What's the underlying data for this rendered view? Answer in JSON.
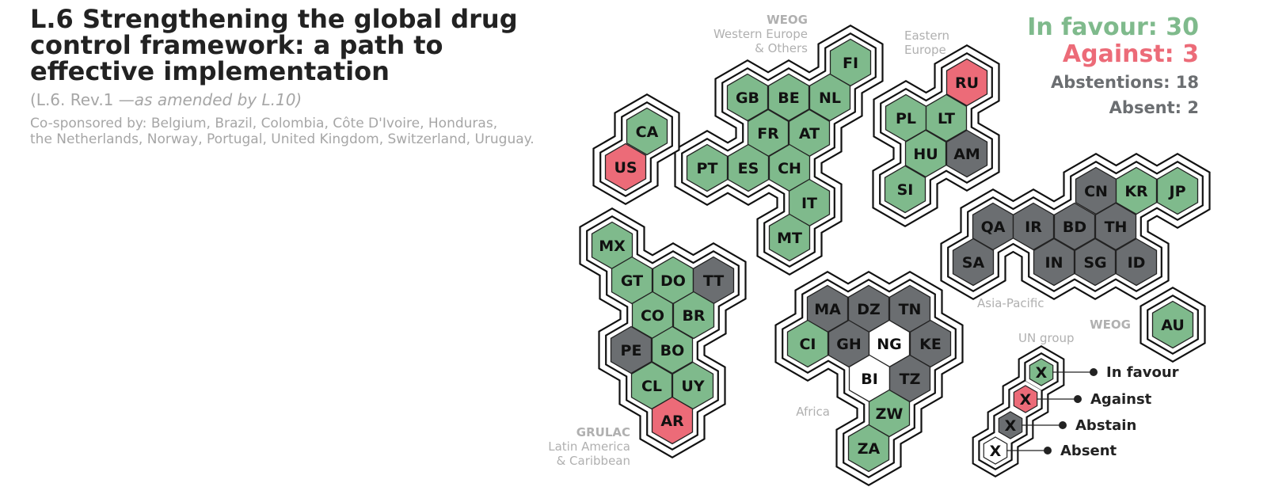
{
  "header": {
    "title_lines": [
      "L.6 Strengthening the global drug",
      "control framework: a path to",
      "effective implementation"
    ],
    "subtitle_prefix": "(L.6. Rev.1 —",
    "subtitle_amend": "as amended by L.10)",
    "cosponsor_lines": [
      "Co-sponsored by: Belgium, Brazil, Colombia, Côte D'Ivoire, Honduras,",
      "the Netherlands, Norway, Portugal, United Kingdom, Switzerland, Uruguay."
    ]
  },
  "tally": {
    "favour": "In favour: 30",
    "against": "Against: 3",
    "abstentions": "Abstentions: 18",
    "absent": "Absent: 2"
  },
  "colors": {
    "favour": "#7fba8c",
    "against": "#ec6b78",
    "abstain": "#6b6e71",
    "absent": "#ffffff"
  },
  "vote_codes": {
    "Y": "favour",
    "N": "against",
    "A": "abstain",
    "X": "absent"
  },
  "groups": [
    {
      "name": "WEOG",
      "sub_lines": [
        "Western Europe",
        "& Others"
      ]
    },
    {
      "name": "",
      "sub_lines": [
        "Eastern",
        "Europe"
      ]
    },
    {
      "name": "",
      "sub_lines": [
        "Asia-Pacific"
      ]
    },
    {
      "name": "WEOG",
      "sub_lines": []
    },
    {
      "name": "",
      "sub_lines": [
        "Africa"
      ]
    },
    {
      "name": "GRULAC",
      "sub_lines": [
        "Latin America",
        "& Caribbean"
      ]
    },
    {
      "name": "",
      "sub_lines": [
        "UN group"
      ]
    }
  ],
  "countries": [
    {
      "code": "FI",
      "vote": "Y"
    },
    {
      "code": "GB",
      "vote": "Y"
    },
    {
      "code": "BE",
      "vote": "Y"
    },
    {
      "code": "NL",
      "vote": "Y"
    },
    {
      "code": "FR",
      "vote": "Y"
    },
    {
      "code": "AT",
      "vote": "Y"
    },
    {
      "code": "PT",
      "vote": "Y"
    },
    {
      "code": "ES",
      "vote": "Y"
    },
    {
      "code": "CH",
      "vote": "Y"
    },
    {
      "code": "IT",
      "vote": "Y"
    },
    {
      "code": "MT",
      "vote": "Y"
    },
    {
      "code": "CA",
      "vote": "Y"
    },
    {
      "code": "US",
      "vote": "N"
    },
    {
      "code": "RU",
      "vote": "N"
    },
    {
      "code": "PL",
      "vote": "Y"
    },
    {
      "code": "LT",
      "vote": "Y"
    },
    {
      "code": "HU",
      "vote": "Y"
    },
    {
      "code": "AM",
      "vote": "A"
    },
    {
      "code": "SI",
      "vote": "Y"
    },
    {
      "code": "CN",
      "vote": "A"
    },
    {
      "code": "KR",
      "vote": "Y"
    },
    {
      "code": "JP",
      "vote": "Y"
    },
    {
      "code": "QA",
      "vote": "A"
    },
    {
      "code": "IR",
      "vote": "A"
    },
    {
      "code": "BD",
      "vote": "A"
    },
    {
      "code": "TH",
      "vote": "A"
    },
    {
      "code": "SA",
      "vote": "A"
    },
    {
      "code": "IN",
      "vote": "A"
    },
    {
      "code": "SG",
      "vote": "A"
    },
    {
      "code": "ID",
      "vote": "A"
    },
    {
      "code": "AU",
      "vote": "Y"
    },
    {
      "code": "MA",
      "vote": "A"
    },
    {
      "code": "DZ",
      "vote": "A"
    },
    {
      "code": "TN",
      "vote": "A"
    },
    {
      "code": "CI",
      "vote": "Y"
    },
    {
      "code": "GH",
      "vote": "A"
    },
    {
      "code": "NG",
      "vote": "X"
    },
    {
      "code": "KE",
      "vote": "A"
    },
    {
      "code": "BI",
      "vote": "X"
    },
    {
      "code": "TZ",
      "vote": "A"
    },
    {
      "code": "ZW",
      "vote": "Y"
    },
    {
      "code": "ZA",
      "vote": "Y"
    },
    {
      "code": "MX",
      "vote": "Y"
    },
    {
      "code": "GT",
      "vote": "Y"
    },
    {
      "code": "DO",
      "vote": "Y"
    },
    {
      "code": "TT",
      "vote": "A"
    },
    {
      "code": "CO",
      "vote": "Y"
    },
    {
      "code": "BR",
      "vote": "Y"
    },
    {
      "code": "PE",
      "vote": "A"
    },
    {
      "code": "BO",
      "vote": "Y"
    },
    {
      "code": "CL",
      "vote": "Y"
    },
    {
      "code": "UY",
      "vote": "Y"
    },
    {
      "code": "AR",
      "vote": "N"
    }
  ],
  "legend": {
    "placeholder": "X",
    "items": [
      {
        "vote": "Y",
        "label": "In favour"
      },
      {
        "vote": "N",
        "label": "Against"
      },
      {
        "vote": "A",
        "label": "Abstain"
      },
      {
        "vote": "X",
        "label": "Absent"
      }
    ]
  }
}
